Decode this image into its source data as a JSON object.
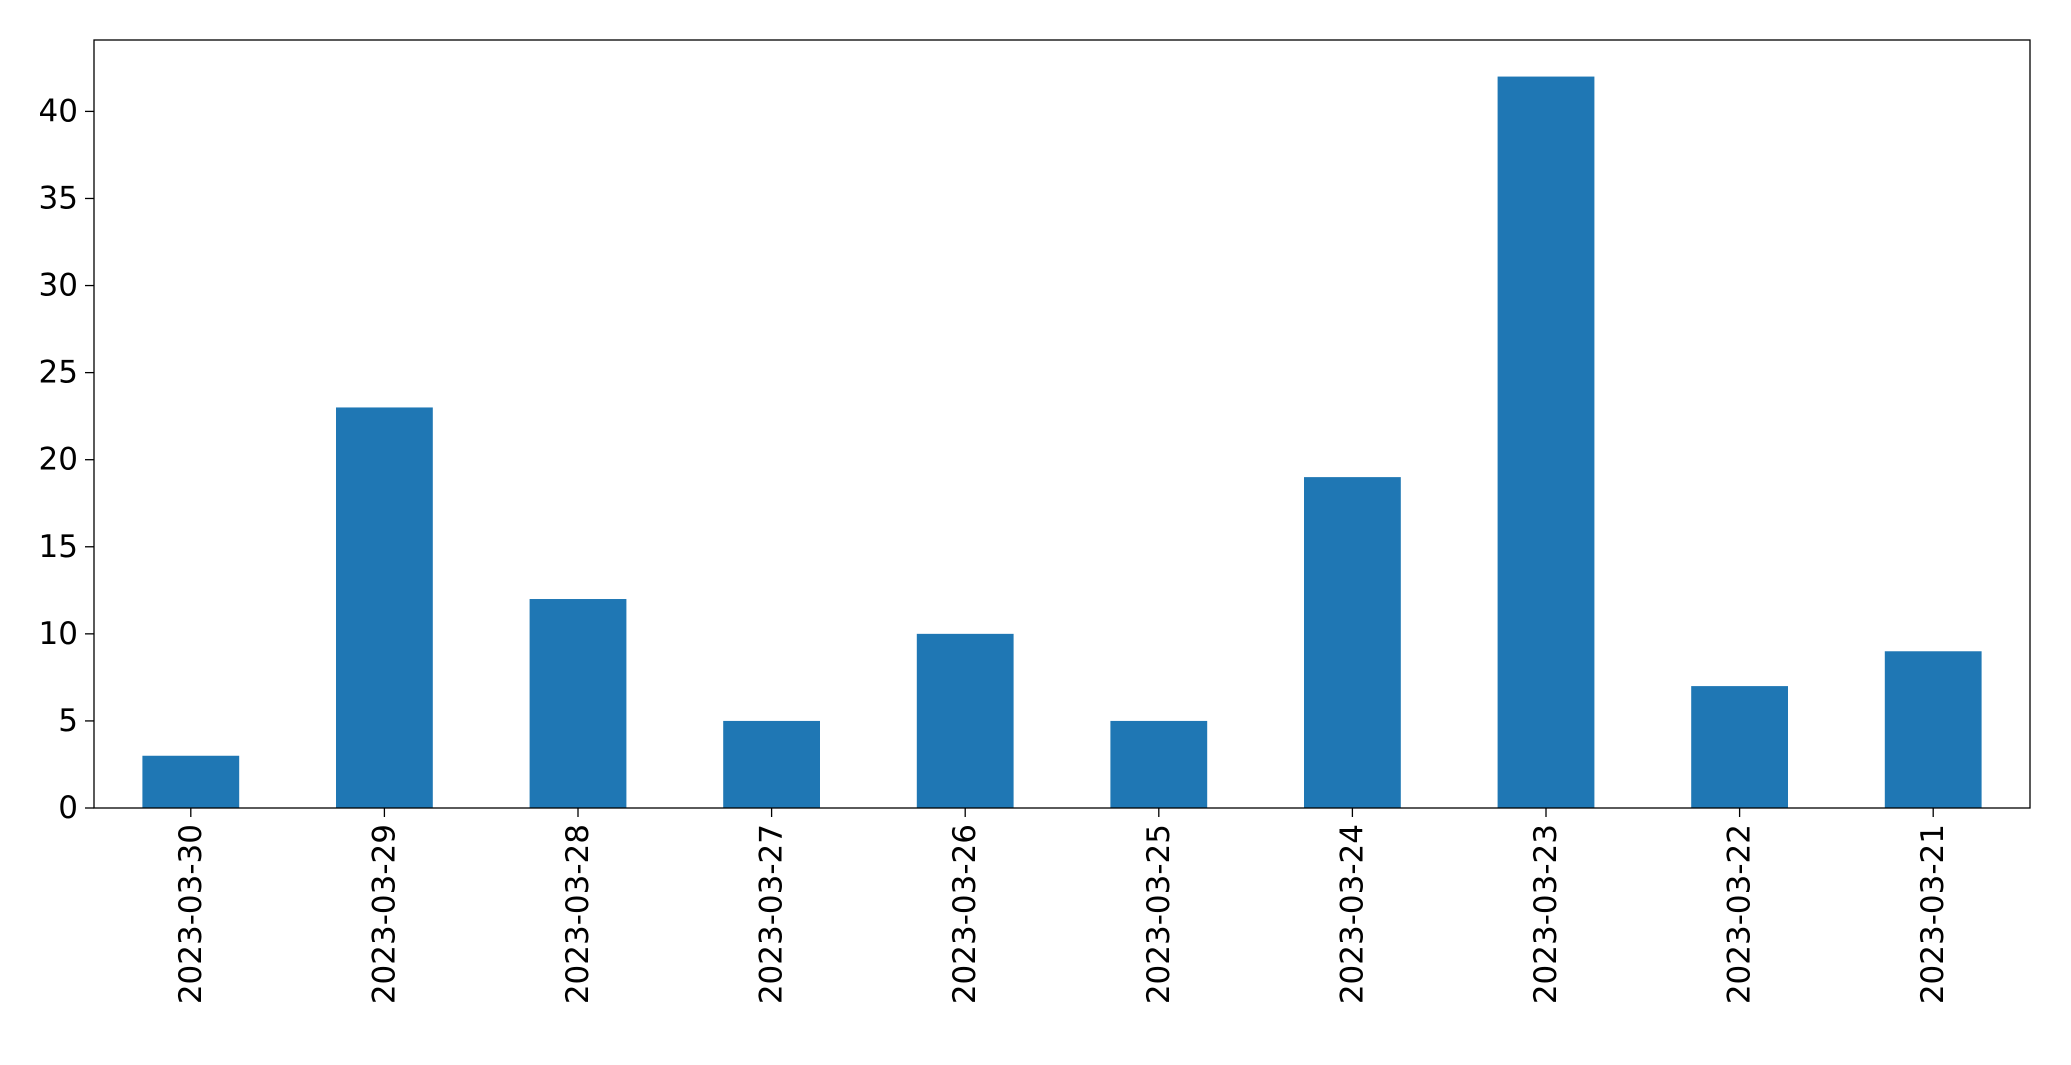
{
  "chart_data": {
    "type": "bar",
    "categories": [
      "2023-03-30",
      "2023-03-29",
      "2023-03-28",
      "2023-03-27",
      "2023-03-26",
      "2023-03-25",
      "2023-03-24",
      "2023-03-23",
      "2023-03-22",
      "2023-03-21"
    ],
    "values": [
      3,
      23,
      12,
      5,
      10,
      5,
      19,
      42,
      7,
      9
    ],
    "color": "#1f77b4",
    "ylim": [
      0,
      44.1
    ],
    "yticks": [
      0,
      5,
      10,
      15,
      20,
      25,
      30,
      35,
      40
    ],
    "grid": false
  }
}
